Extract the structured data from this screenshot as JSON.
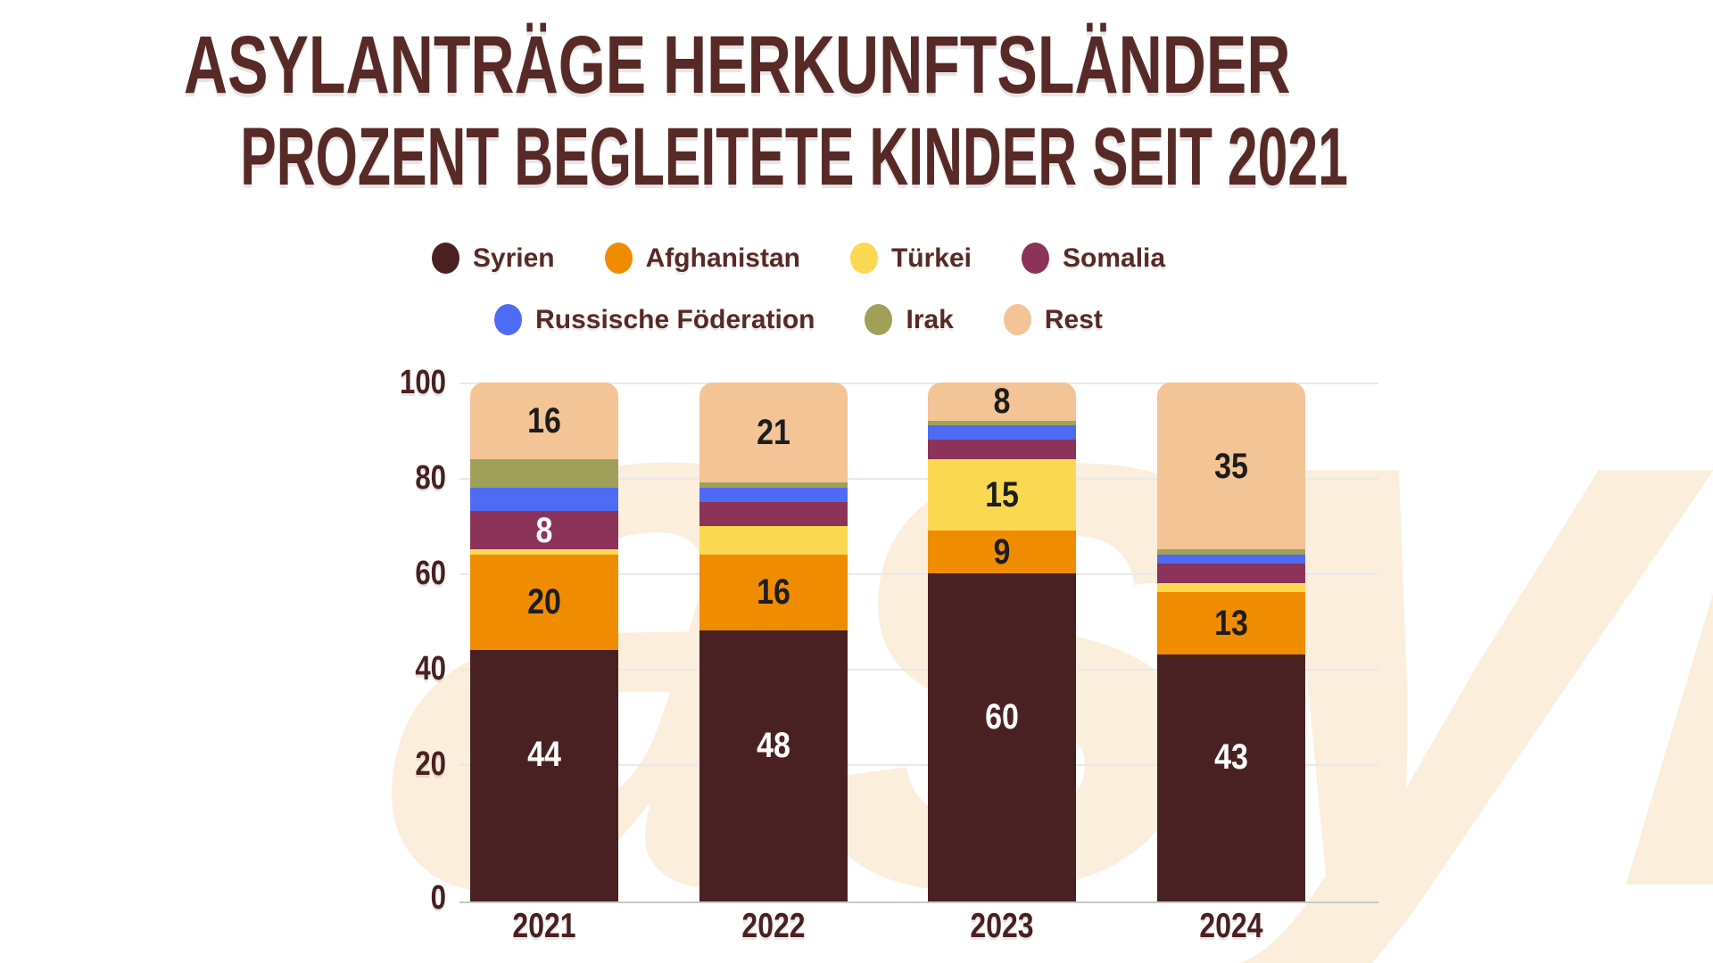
{
  "title": {
    "line1": "ASYLANTRÄGE HERKUNFTSLÄNDER",
    "line2": "PROZENT BEGLEITETE KINDER SEIT 2021"
  },
  "watermark": {
    "text": "asyl"
  },
  "colors": {
    "background": "#ffffff",
    "title": "#572a27",
    "tick_label": "#4a2020",
    "gridline": "#e9e9e9",
    "axis_line": "#c9c9c9",
    "watermark": "#fbeedd",
    "value_label_dark": "#1d1d1b",
    "value_label_light": "#ffffff"
  },
  "legend": {
    "rows": [
      [
        "Syrien",
        "Afghanistan",
        "Türkei",
        "Somalia"
      ],
      [
        "Russische Föderation",
        "Irak",
        "Rest"
      ]
    ]
  },
  "chart_data": {
    "type": "bar",
    "stacked": true,
    "title": "Asylanträge Herkunftsländer - Prozent begleitete Kinder seit 2021",
    "categories": [
      "2021",
      "2022",
      "2023",
      "2024"
    ],
    "series": [
      {
        "name": "Syrien",
        "color": "#4a2122",
        "label_color": "#ffffff",
        "values": [
          44,
          48,
          60,
          43
        ]
      },
      {
        "name": "Afghanistan",
        "color": "#f08c00",
        "label_color": "#1d1d1b",
        "values": [
          20,
          16,
          9,
          13
        ]
      },
      {
        "name": "Türkei",
        "color": "#fbd851",
        "label_color": "#1d1d1b",
        "values": [
          1,
          6,
          15,
          2
        ]
      },
      {
        "name": "Somalia",
        "color": "#8c3359",
        "label_color": "#ffffff",
        "values": [
          8,
          5,
          4,
          4
        ]
      },
      {
        "name": "Russische Föderation",
        "color": "#4e6bf5",
        "label_color": "#1d1d1b",
        "values": [
          5,
          3,
          3,
          2
        ]
      },
      {
        "name": "Irak",
        "color": "#a1a058",
        "label_color": "#1d1d1b",
        "values": [
          6,
          1,
          1,
          1
        ]
      },
      {
        "name": "Rest",
        "color": "#f3c495",
        "label_color": "#1d1d1b",
        "values": [
          16,
          21,
          8,
          35
        ]
      }
    ],
    "xlabel": "",
    "ylabel": "",
    "ylim": [
      0,
      100
    ],
    "yticks": [
      0,
      20,
      40,
      60,
      80,
      100
    ],
    "grid": true,
    "legend_position": "top",
    "value_label_min": 8
  }
}
